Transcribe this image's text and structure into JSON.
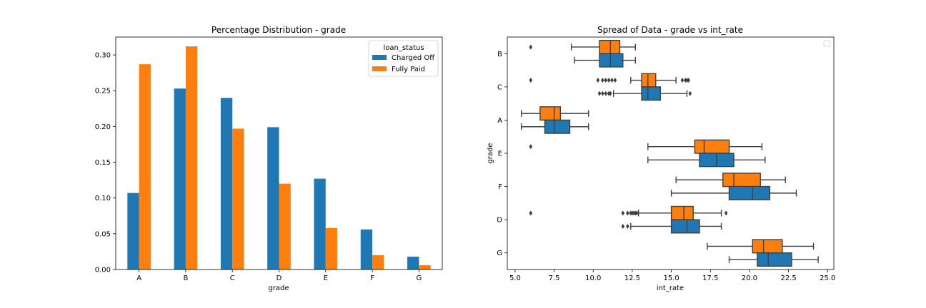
{
  "colors": {
    "charged_off": "#1f77b4",
    "fully_paid": "#ff7f0e",
    "outline": "#3f3f3f"
  },
  "chart_data": [
    {
      "type": "bar",
      "title": "Percentage Distribution - grade",
      "xlabel": "grade",
      "ylabel": "",
      "categories": [
        "A",
        "B",
        "C",
        "D",
        "E",
        "F",
        "G"
      ],
      "ylim": [
        0,
        0.325
      ],
      "yticks": [
        "0.00",
        "0.05",
        "0.10",
        "0.15",
        "0.20",
        "0.25",
        "0.30"
      ],
      "legend_title": "loan_status",
      "legend_placement": "top-right",
      "series": [
        {
          "name": "Charged Off",
          "values": [
            0.107,
            0.253,
            0.24,
            0.199,
            0.127,
            0.056,
            0.018
          ]
        },
        {
          "name": "Fully Paid",
          "values": [
            0.287,
            0.312,
            0.197,
            0.12,
            0.058,
            0.02,
            0.006
          ]
        }
      ]
    },
    {
      "type": "boxplot",
      "title": "Spread of Data - grade vs int_rate",
      "xlabel": "int_rate",
      "ylabel": "grade",
      "xlim": [
        4.5,
        25.4
      ],
      "xticks": [
        "5.0",
        "7.5",
        "10.0",
        "12.5",
        "15.0",
        "17.5",
        "20.0",
        "22.5",
        "25.0"
      ],
      "categories": [
        "B",
        "C",
        "A",
        "E",
        "F",
        "D",
        "G"
      ],
      "legend_placement": "top-right",
      "legend_entries": [],
      "groups": [
        {
          "grade": "B",
          "fully_paid": {
            "whislo": 8.6,
            "q1": 10.4,
            "med": 11.1,
            "q3": 11.7,
            "whishi": 12.7,
            "fliers": [
              6.0
            ]
          },
          "charged_off": {
            "whislo": 8.8,
            "q1": 10.4,
            "med": 11.1,
            "q3": 11.9,
            "whishi": 12.7,
            "fliers": []
          }
        },
        {
          "grade": "C",
          "fully_paid": {
            "whislo": 12.4,
            "q1": 13.1,
            "med": 13.5,
            "q3": 14.0,
            "whishi": 15.3,
            "fliers": [
              6.0,
              10.3,
              10.6,
              10.8,
              11.0,
              11.2,
              11.4,
              15.7,
              15.9,
              16.0,
              16.1
            ]
          },
          "charged_off": {
            "whislo": 11.3,
            "q1": 13.1,
            "med": 13.5,
            "q3": 14.3,
            "whishi": 16.0,
            "fliers": [
              10.4,
              10.6,
              10.8,
              11.0,
              11.1,
              16.2
            ]
          }
        },
        {
          "grade": "A",
          "fully_paid": {
            "whislo": 5.4,
            "q1": 6.6,
            "med": 7.5,
            "q3": 7.9,
            "whishi": 9.7,
            "fliers": []
          },
          "charged_off": {
            "whislo": 5.4,
            "q1": 6.9,
            "med": 7.5,
            "q3": 8.5,
            "whishi": 9.7,
            "fliers": []
          }
        },
        {
          "grade": "E",
          "fully_paid": {
            "whislo": 13.5,
            "q1": 16.5,
            "med": 17.1,
            "q3": 18.7,
            "whishi": 20.8,
            "fliers": [
              6.0
            ]
          },
          "charged_off": {
            "whislo": 13.5,
            "q1": 16.8,
            "med": 17.9,
            "q3": 19.0,
            "whishi": 21.0,
            "fliers": []
          }
        },
        {
          "grade": "F",
          "fully_paid": {
            "whislo": 15.3,
            "q1": 18.3,
            "med": 19.0,
            "q3": 20.7,
            "whishi": 22.3,
            "fliers": []
          },
          "charged_off": {
            "whislo": 15.0,
            "q1": 18.7,
            "med": 20.2,
            "q3": 21.3,
            "whishi": 23.0,
            "fliers": []
          }
        },
        {
          "grade": "D",
          "fully_paid": {
            "whislo": 12.9,
            "q1": 15.0,
            "med": 15.8,
            "q3": 16.4,
            "whishi": 18.2,
            "fliers": [
              6.0,
              11.9,
              12.2,
              12.4,
              12.5,
              12.6,
              12.7,
              12.8,
              18.5
            ]
          },
          "charged_off": {
            "whislo": 12.4,
            "q1": 15.0,
            "med": 16.0,
            "q3": 16.8,
            "whishi": 18.2,
            "fliers": [
              11.9,
              12.2
            ]
          }
        },
        {
          "grade": "G",
          "fully_paid": {
            "whislo": 17.3,
            "q1": 20.2,
            "med": 20.9,
            "q3": 22.1,
            "whishi": 24.1,
            "fliers": []
          },
          "charged_off": {
            "whislo": 18.7,
            "q1": 20.5,
            "med": 21.2,
            "q3": 22.7,
            "whishi": 24.4,
            "fliers": []
          }
        }
      ]
    }
  ]
}
